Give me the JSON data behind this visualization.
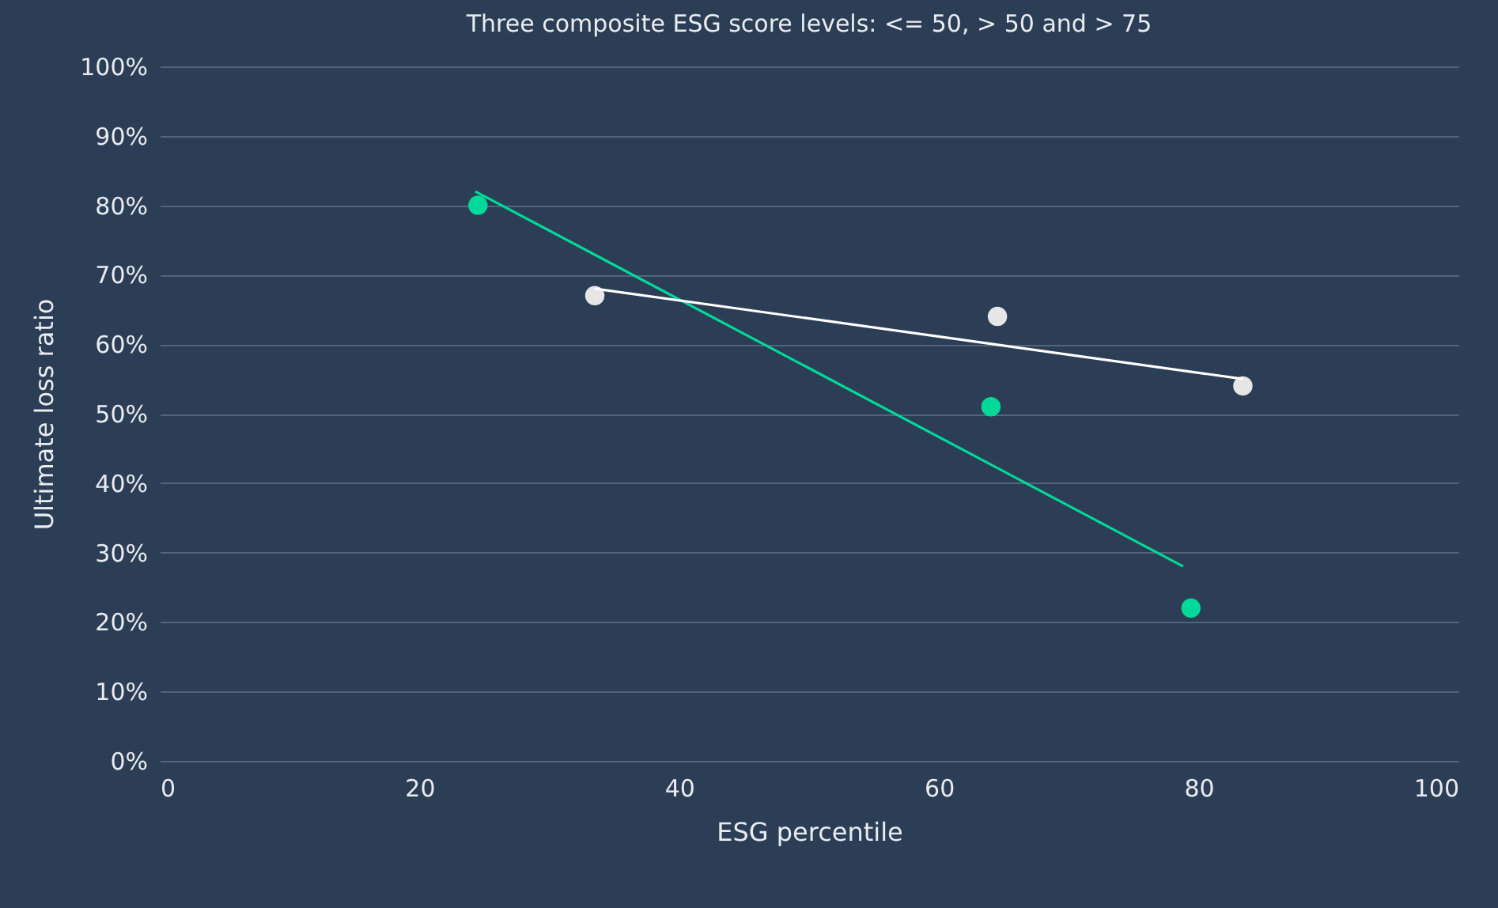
{
  "chart_data": {
    "type": "scatter",
    "title": "Three composite ESG score levels: <= 50, > 50 and > 75",
    "xlabel": "ESG percentile",
    "ylabel": "Ultimate loss ratio",
    "xlim": [
      0,
      100
    ],
    "xticks": [
      0,
      20,
      40,
      60,
      80,
      100
    ],
    "ylim": [
      0,
      100
    ],
    "yticks": [
      {
        "value": 0,
        "label": "0%"
      },
      {
        "value": 10,
        "label": "10%"
      },
      {
        "value": 20,
        "label": "20%"
      },
      {
        "value": 30,
        "label": "30%"
      },
      {
        "value": 40,
        "label": "40%"
      },
      {
        "value": 50,
        "label": "50%"
      },
      {
        "value": 60,
        "label": "60%"
      },
      {
        "value": 70,
        "label": "70%"
      },
      {
        "value": 80,
        "label": "80%"
      },
      {
        "value": 90,
        "label": "90%"
      },
      {
        "value": 100,
        "label": "100%"
      }
    ],
    "grid": "y",
    "series": [
      {
        "type": "scatter",
        "marker": "circle",
        "color": "#00d99a",
        "x": [
          24.5,
          64.0,
          79.4
        ],
        "values": [
          80,
          51,
          22
        ]
      },
      {
        "type": "line",
        "color": "#00d99a",
        "x": [
          24.3,
          78.8
        ],
        "values": [
          82,
          28
        ]
      },
      {
        "type": "scatter",
        "marker": "circle",
        "color": "#e6e6e6",
        "x": [
          33.5,
          64.5,
          83.4
        ],
        "values": [
          67,
          64,
          54
        ]
      },
      {
        "type": "line",
        "color": "#ffffff",
        "x": [
          33.5,
          83.4
        ],
        "values": [
          68,
          55
        ]
      }
    ]
  }
}
